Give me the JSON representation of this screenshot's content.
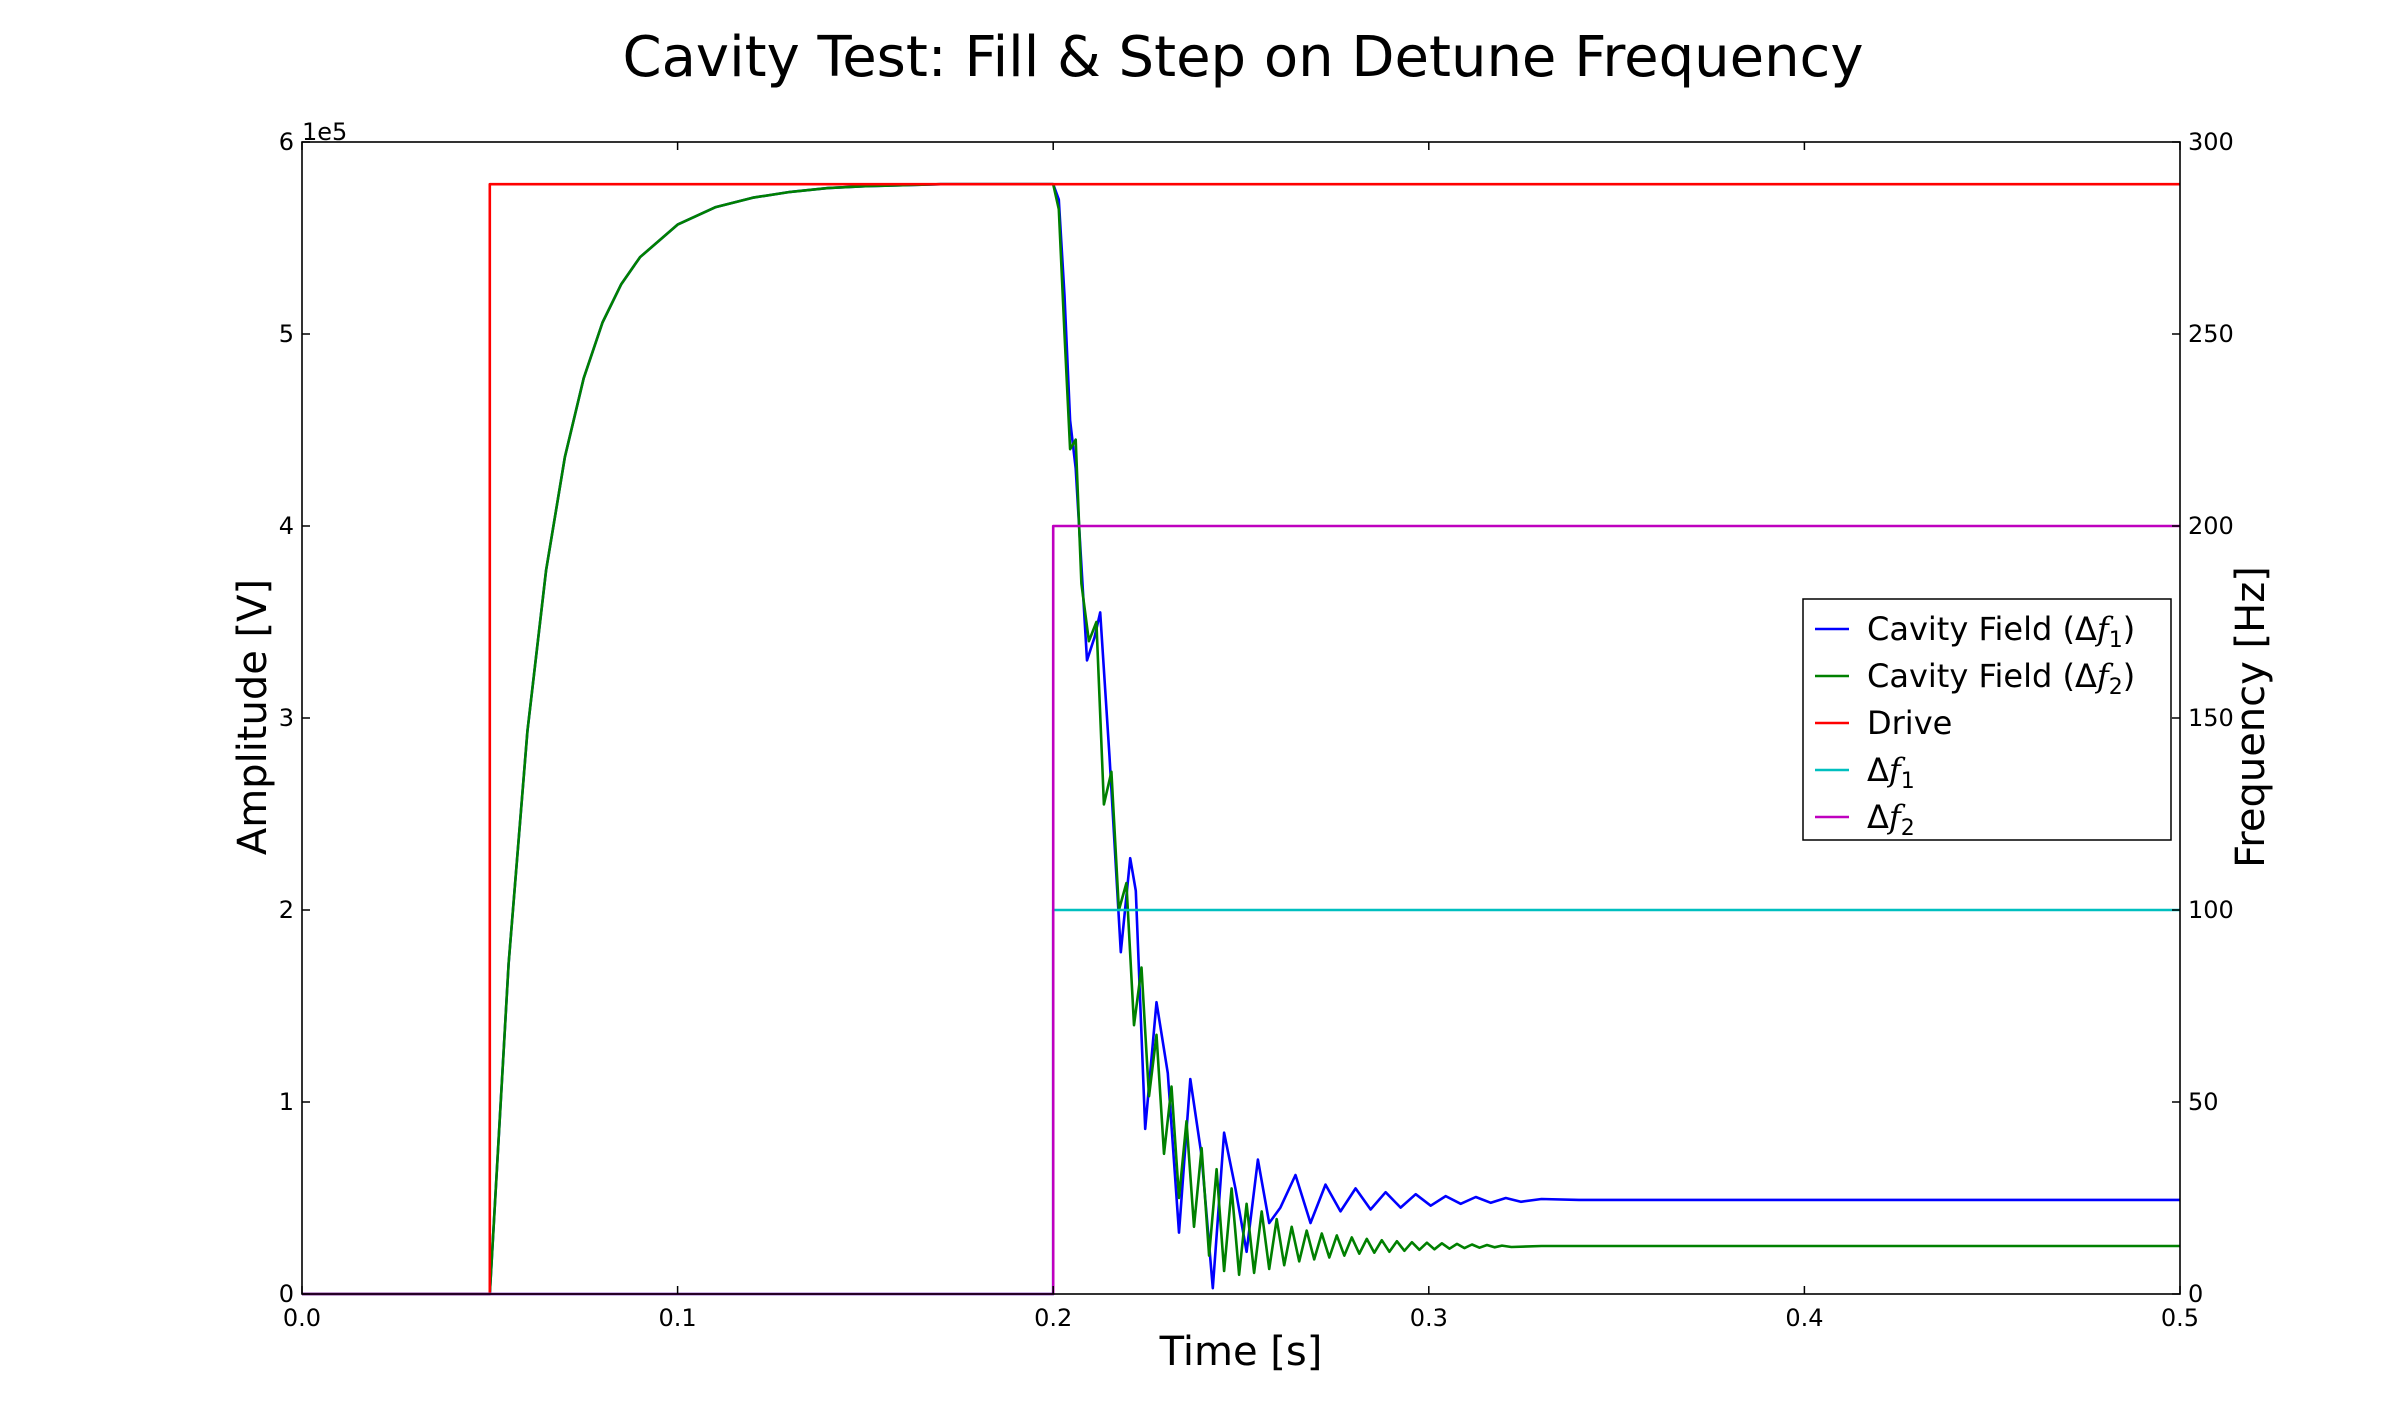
{
  "chart_data": {
    "type": "line",
    "title": "Cavity Test: Fill & Step on Detune Frequency",
    "xlabel": "Time [s]",
    "ylabel": "Amplitude [V]",
    "y2label": "Frequency [Hz]",
    "xlim": [
      0.0,
      0.5
    ],
    "ylim": [
      0,
      600000
    ],
    "y2lim": [
      0,
      300
    ],
    "x_ticks": [
      "0.0",
      "0.1",
      "0.2",
      "0.3",
      "0.4",
      "0.5"
    ],
    "y_ticks": [
      "0",
      "1",
      "2",
      "3",
      "4",
      "5",
      "6"
    ],
    "y_offset_label": "1e5",
    "y2_ticks": [
      "0",
      "50",
      "100",
      "150",
      "200",
      "250",
      "300"
    ],
    "grid": false,
    "legend_position": "right",
    "series": [
      {
        "name": "Cavity Field (Δf₁)",
        "legend_label": {
          "base": "Cavity Field (Δ",
          "sym": "f",
          "sub": "1",
          "close": ")"
        },
        "color": "#0000ff",
        "axis": "left",
        "x": [
          0.0,
          0.05,
          0.055,
          0.06,
          0.065,
          0.07,
          0.075,
          0.08,
          0.085,
          0.09,
          0.1,
          0.11,
          0.12,
          0.13,
          0.14,
          0.15,
          0.16,
          0.17,
          0.18,
          0.19,
          0.2,
          0.2015,
          0.203,
          0.2045,
          0.206,
          0.209,
          0.211,
          0.2125,
          0.215,
          0.218,
          0.2205,
          0.222,
          0.2245,
          0.2275,
          0.2305,
          0.2335,
          0.2365,
          0.2395,
          0.2425,
          0.2455,
          0.2485,
          0.2515,
          0.2545,
          0.2575,
          0.2605,
          0.2645,
          0.2685,
          0.2725,
          0.2765,
          0.2805,
          0.2845,
          0.2885,
          0.2925,
          0.2965,
          0.3005,
          0.3045,
          0.3085,
          0.3125,
          0.3165,
          0.3205,
          0.3245,
          0.33,
          0.34,
          0.36,
          0.4,
          0.45,
          0.5
        ],
        "y": [
          0,
          0,
          172000,
          293000,
          377000,
          436000,
          477000,
          506000,
          526000,
          540000,
          557000,
          566000,
          571000,
          574000,
          576000,
          577000,
          577500,
          578000,
          578000,
          578000,
          578000,
          570000,
          520000,
          455000,
          430000,
          330000,
          342000,
          355000,
          280000,
          178000,
          227000,
          210000,
          86000,
          152000,
          115000,
          32000,
          112000,
          72000,
          3000,
          84000,
          55000,
          22000,
          70000,
          37000,
          45000,
          62000,
          37000,
          57000,
          43000,
          55000,
          44000,
          53000,
          45000,
          52000,
          46000,
          51000,
          47000,
          50500,
          47500,
          50000,
          48000,
          49500,
          49000,
          49000,
          49000,
          49000,
          49000
        ]
      },
      {
        "name": "Cavity Field (Δf₂)",
        "legend_label": {
          "base": "Cavity Field (Δ",
          "sym": "f",
          "sub": "2",
          "close": ")"
        },
        "color": "#008000",
        "axis": "left",
        "x": [
          0.0,
          0.05,
          0.055,
          0.06,
          0.065,
          0.07,
          0.075,
          0.08,
          0.085,
          0.09,
          0.1,
          0.11,
          0.12,
          0.13,
          0.14,
          0.15,
          0.16,
          0.17,
          0.18,
          0.19,
          0.2,
          0.2015,
          0.203,
          0.2045,
          0.206,
          0.2075,
          0.2095,
          0.2115,
          0.2135,
          0.2155,
          0.2175,
          0.2195,
          0.2215,
          0.2235,
          0.2255,
          0.2275,
          0.2295,
          0.2315,
          0.2335,
          0.2355,
          0.2375,
          0.2395,
          0.2415,
          0.2435,
          0.2455,
          0.2475,
          0.2495,
          0.2515,
          0.2535,
          0.2555,
          0.2575,
          0.2595,
          0.2615,
          0.2635,
          0.2655,
          0.2675,
          0.2695,
          0.2715,
          0.2735,
          0.2755,
          0.2775,
          0.2795,
          0.2815,
          0.2835,
          0.2855,
          0.2875,
          0.2895,
          0.2915,
          0.2935,
          0.2955,
          0.2975,
          0.2995,
          0.3015,
          0.3035,
          0.3055,
          0.3075,
          0.3095,
          0.3115,
          0.3135,
          0.3155,
          0.3175,
          0.3195,
          0.322,
          0.33,
          0.34,
          0.36,
          0.4,
          0.45,
          0.5
        ],
        "y": [
          0,
          0,
          172000,
          293000,
          377000,
          436000,
          477000,
          506000,
          526000,
          540000,
          557000,
          566000,
          571000,
          574000,
          576000,
          577000,
          577500,
          578000,
          578000,
          578000,
          578000,
          565000,
          500000,
          440000,
          445000,
          370000,
          340000,
          350000,
          255000,
          272000,
          200000,
          214000,
          140000,
          170000,
          103000,
          135000,
          73000,
          108000,
          50000,
          90000,
          35000,
          76000,
          20000,
          65000,
          12000,
          55000,
          10000,
          47000,
          11000,
          43000,
          13000,
          39000,
          15000,
          35000,
          17000,
          33000,
          18000,
          31500,
          19000,
          30500,
          20000,
          29500,
          21000,
          28700,
          21500,
          28000,
          22000,
          27500,
          22500,
          27000,
          23000,
          26700,
          23300,
          26400,
          23600,
          26100,
          23900,
          25800,
          24100,
          25500,
          24300,
          25200,
          24500,
          25000,
          25000,
          25000,
          25000,
          25000,
          25000
        ]
      },
      {
        "name": "Drive",
        "legend_label": {
          "base": "Drive",
          "sym": "",
          "sub": "",
          "close": ""
        },
        "color": "#ff0000",
        "axis": "left",
        "x": [
          0.0,
          0.05,
          0.05,
          0.5
        ],
        "y": [
          0,
          0,
          578000,
          578000
        ]
      },
      {
        "name": "Δf₁",
        "legend_label": {
          "base": "Δ",
          "sym": "f",
          "sub": "1",
          "close": ""
        },
        "color": "#00bfbf",
        "axis": "right",
        "x": [
          0.0,
          0.2,
          0.2,
          0.5
        ],
        "y": [
          0,
          0,
          100,
          100
        ]
      },
      {
        "name": "Δf₂",
        "legend_label": {
          "base": "Δ",
          "sym": "f",
          "sub": "2",
          "close": ""
        },
        "color": "#bf00bf",
        "axis": "right",
        "x": [
          0.0,
          0.2,
          0.2,
          0.5
        ],
        "y": [
          0,
          0,
          200,
          200
        ]
      }
    ]
  }
}
